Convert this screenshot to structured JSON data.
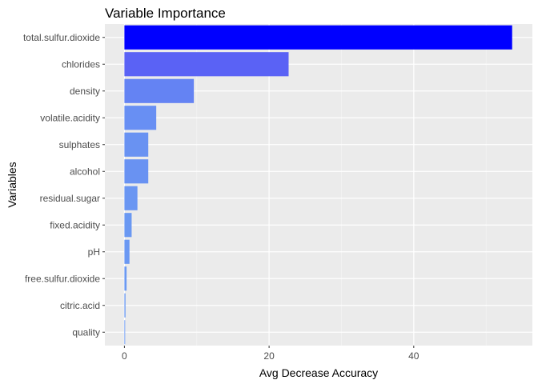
{
  "chart_data": {
    "type": "bar",
    "orientation": "horizontal",
    "title": "Variable Importance",
    "xlabel": "Avg Decrease Accuracy",
    "ylabel": "Variables",
    "categories": [
      "total.sulfur.dioxide",
      "chlorides",
      "density",
      "volatile.acidity",
      "sulphates",
      "alcohol",
      "residual.sugar",
      "fixed.acidity",
      "pH",
      "free.sulfur.dioxide",
      "citric.acid",
      "quality"
    ],
    "values": [
      53.6,
      22.7,
      9.6,
      4.4,
      3.3,
      3.3,
      1.8,
      1.0,
      0.7,
      0.3,
      0.15,
      0.1
    ],
    "xlim": [
      -2.7,
      56.4
    ],
    "xticks": [
      0,
      20,
      40
    ],
    "grid": true,
    "legend": "none",
    "colors": {
      "bar_low": "#6b9af2",
      "bar_mid": "#5b63f5",
      "bar_high": "#0000ff",
      "panel_background": "#ebebeb",
      "grid_major": "#ffffff",
      "grid_minor": "#f5f5f5"
    }
  }
}
